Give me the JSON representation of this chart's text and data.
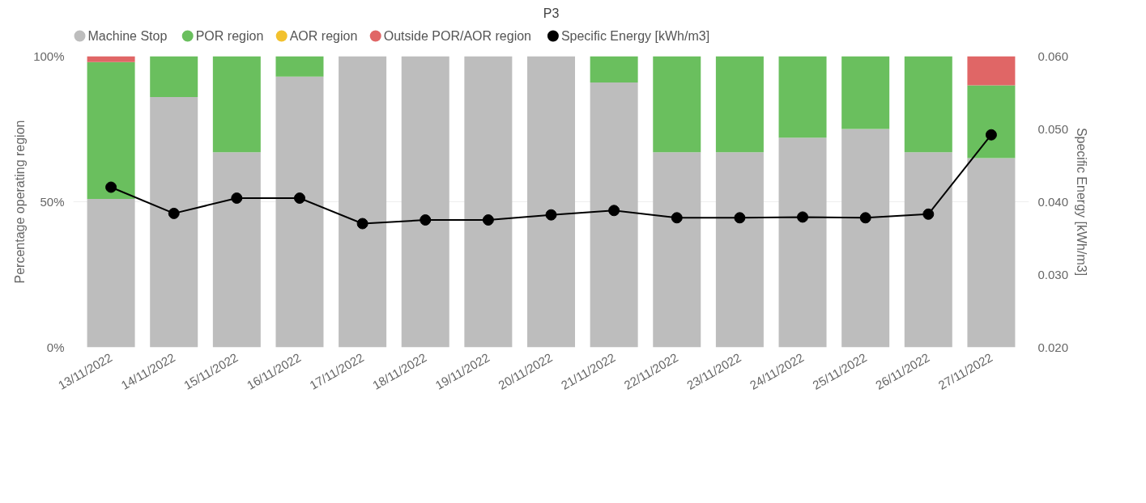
{
  "chart_data": {
    "type": "bar",
    "title": "P3",
    "ylabel": "Percentage operating region",
    "y2label": "Specific Energy [kWh/m3]",
    "stacked": true,
    "categories": [
      "13/11/2022",
      "14/11/2022",
      "15/11/2022",
      "16/11/2022",
      "17/11/2022",
      "18/11/2022",
      "19/11/2022",
      "20/11/2022",
      "21/11/2022",
      "22/11/2022",
      "23/11/2022",
      "24/11/2022",
      "25/11/2022",
      "26/11/2022",
      "27/11/2022"
    ],
    "series": [
      {
        "name": "Machine Stop",
        "color": "#bdbdbd",
        "values": [
          51,
          86,
          67,
          93,
          100,
          100,
          100,
          100,
          91,
          67,
          67,
          72,
          75,
          67,
          65
        ]
      },
      {
        "name": "POR region",
        "color": "#6abf5e",
        "values": [
          47,
          14,
          33,
          7,
          0,
          0,
          0,
          0,
          9,
          33,
          33,
          28,
          25,
          33,
          25
        ]
      },
      {
        "name": "AOR region",
        "color": "#f2c12e",
        "values": [
          0,
          0,
          0,
          0,
          0,
          0,
          0,
          0,
          0,
          0,
          0,
          0,
          0,
          0,
          0
        ]
      },
      {
        "name": "Outside POR/AOR region",
        "color": "#e06666",
        "values": [
          2,
          0,
          0,
          0,
          0,
          0,
          0,
          0,
          0,
          0,
          0,
          0,
          0,
          0,
          10
        ]
      },
      {
        "name": "Specific Energy [kWh/m3]",
        "color": "#000000",
        "type": "line",
        "axis": "y2",
        "values": [
          0.042,
          0.0384,
          0.0405,
          0.0405,
          0.037,
          0.0375,
          0.0375,
          0.0382,
          0.0388,
          0.0378,
          0.0378,
          0.0379,
          0.0378,
          0.0383,
          0.0492
        ]
      }
    ],
    "ylim": [
      0,
      100
    ],
    "yticks": [
      {
        "value": 0,
        "label": "0%"
      },
      {
        "value": 50,
        "label": "50%"
      },
      {
        "value": 100,
        "label": "100%"
      }
    ],
    "y2lim": [
      0.02,
      0.06
    ],
    "y2ticks": [
      {
        "value": 0.02,
        "label": "0.020"
      },
      {
        "value": 0.03,
        "label": "0.030"
      },
      {
        "value": 0.04,
        "label": "0.040"
      },
      {
        "value": 0.05,
        "label": "0.050"
      },
      {
        "value": 0.06,
        "label": "0.060"
      }
    ],
    "grid": "y",
    "legend": "top left",
    "marker": "circle",
    "line_style": "solid"
  }
}
